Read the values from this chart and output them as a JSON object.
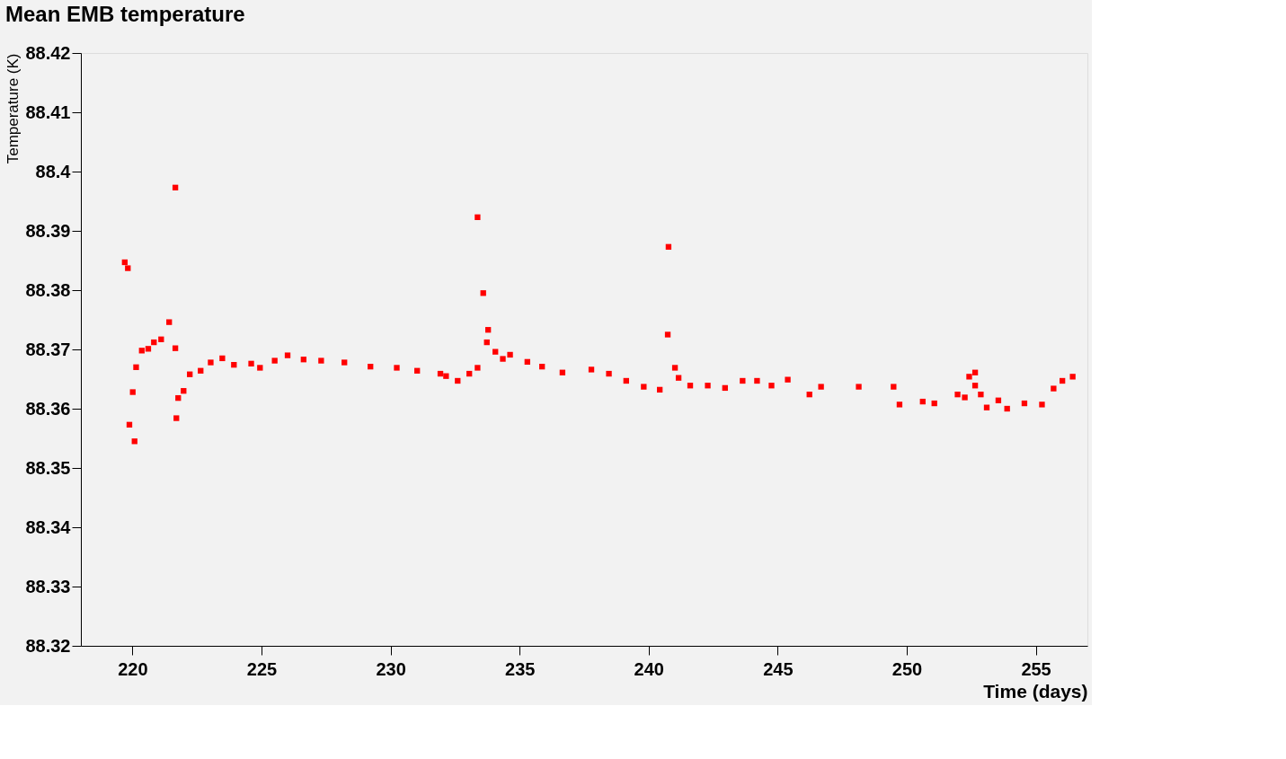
{
  "chart_data": {
    "type": "scatter",
    "title": "Mean EMB temperature",
    "xlabel": "Time (days)",
    "ylabel": "Temperature (K)",
    "xlim": [
      218,
      257
    ],
    "xticks": [
      220,
      225,
      230,
      235,
      240,
      245,
      250,
      255
    ],
    "ylim": [
      88.32,
      88.42
    ],
    "yticks": [
      88.32,
      88.33,
      88.34,
      88.35,
      88.36,
      88.37,
      88.38,
      88.39,
      88.4,
      88.41,
      88.42
    ],
    "grid": false,
    "legend": false,
    "marker": "square",
    "series": [
      {
        "color": "#ff0000",
        "x": [
          219.7,
          219.82,
          219.88,
          220.01,
          220.08,
          220.14,
          220.36,
          220.61,
          220.83,
          221.11,
          221.42,
          221.66,
          221.66,
          221.7,
          221.77,
          221.98,
          222.22,
          222.64,
          223.03,
          223.48,
          223.93,
          224.6,
          224.94,
          225.51,
          226.01,
          226.63,
          227.31,
          228.21,
          229.22,
          230.24,
          231.03,
          231.93,
          232.15,
          232.6,
          233.05,
          233.37,
          233.37,
          233.59,
          233.73,
          233.78,
          234.06,
          234.35,
          234.63,
          235.3,
          235.87,
          236.66,
          237.78,
          238.46,
          239.13,
          239.81,
          240.43,
          240.74,
          240.77,
          241.02,
          241.16,
          241.61,
          242.29,
          242.96,
          243.64,
          244.2,
          244.76,
          245.39,
          246.23,
          246.68,
          248.14,
          249.49,
          249.72,
          250.62,
          251.07,
          251.97,
          252.25,
          252.42,
          252.65,
          252.65,
          252.87,
          253.1,
          253.55,
          253.89,
          254.56,
          255.24,
          255.69,
          256.03,
          256.43
        ],
        "values": [
          88.3847,
          88.3837,
          88.3573,
          88.3628,
          88.3545,
          88.367,
          88.3698,
          88.3701,
          88.3712,
          88.3717,
          88.3746,
          88.3973,
          88.3702,
          88.3584,
          88.3618,
          88.363,
          88.3658,
          88.3664,
          88.3678,
          88.3685,
          88.3674,
          88.3676,
          88.3669,
          88.3681,
          88.369,
          88.3683,
          88.3681,
          88.3678,
          88.3671,
          88.3669,
          88.3664,
          88.3659,
          88.3655,
          88.3647,
          88.3659,
          88.3669,
          88.3923,
          88.3795,
          88.3712,
          88.3733,
          88.3696,
          88.3684,
          88.3691,
          88.3679,
          88.3671,
          88.3661,
          88.3666,
          88.3659,
          88.3647,
          88.3637,
          88.3632,
          88.3725,
          88.3873,
          88.3669,
          88.3652,
          88.3639,
          88.3639,
          88.3635,
          88.3647,
          88.3647,
          88.3639,
          88.3649,
          88.3624,
          88.3637,
          88.3637,
          88.3637,
          88.3607,
          88.3612,
          88.3609,
          88.3624,
          88.3619,
          88.3654,
          88.3661,
          88.3639,
          88.3624,
          88.3602,
          88.3614,
          88.36,
          88.3609,
          88.3607,
          88.3634,
          88.3647,
          88.3654
        ]
      }
    ]
  }
}
